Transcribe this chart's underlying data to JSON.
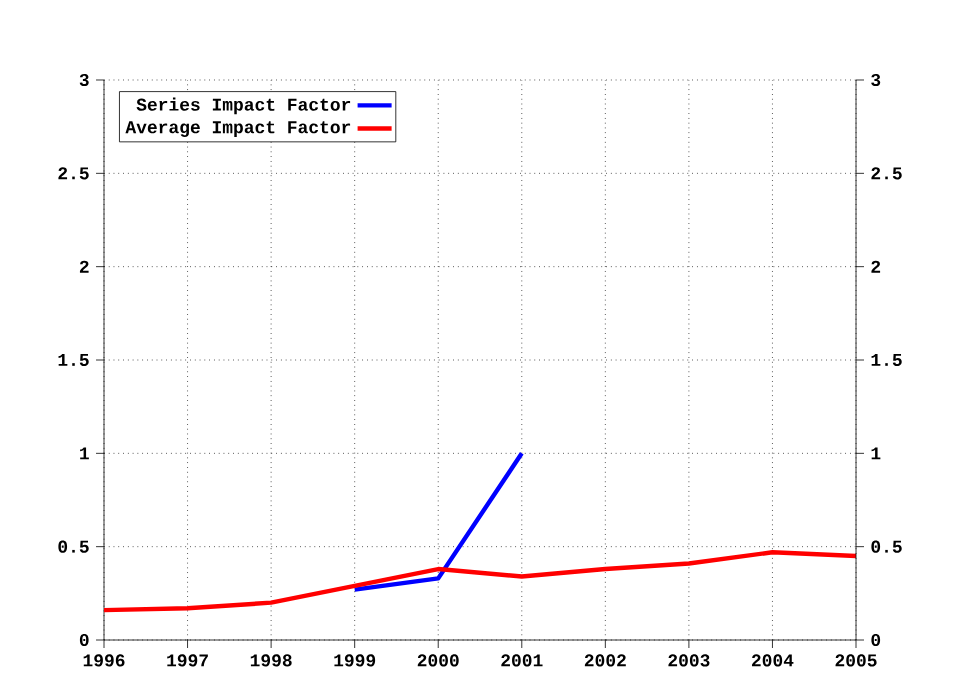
{
  "chart_data": {
    "type": "line",
    "x": [
      1996,
      1997,
      1998,
      1999,
      2000,
      2001,
      2002,
      2003,
      2004,
      2005
    ],
    "series": [
      {
        "name": "Series Impact Factor",
        "color": "#0000ff",
        "values": [
          null,
          null,
          null,
          0.27,
          0.33,
          1.0,
          null,
          null,
          null,
          null
        ]
      },
      {
        "name": "Average Impact Factor",
        "color": "#ff0000",
        "values": [
          0.16,
          0.17,
          0.2,
          0.29,
          0.38,
          0.34,
          0.38,
          0.41,
          0.47,
          0.45
        ]
      }
    ],
    "xlim": [
      1996,
      2005
    ],
    "xticks": [
      1996,
      1997,
      1998,
      1999,
      2000,
      2001,
      2002,
      2003,
      2004,
      2005
    ],
    "ylim": [
      0,
      3
    ],
    "yticks": [
      0,
      0.5,
      1,
      1.5,
      2,
      2.5,
      3
    ],
    "y2lim": [
      0,
      3
    ],
    "y2ticks": [
      0,
      0.5,
      1,
      1.5,
      2,
      2.5,
      3
    ],
    "grid": true,
    "legend": "top left",
    "line_style": "solid"
  }
}
